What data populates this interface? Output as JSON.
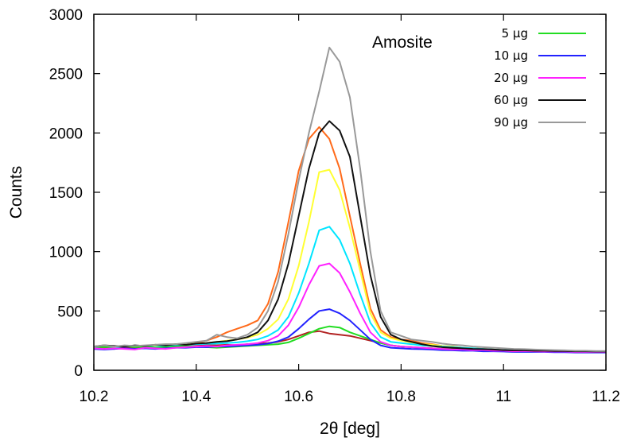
{
  "chart_data": {
    "type": "line",
    "title": "",
    "annotation": "Amosite",
    "xlabel": "2θ [deg]",
    "ylabel": "Counts",
    "xlim": [
      10.2,
      11.2
    ],
    "ylim": [
      0,
      3000
    ],
    "xticks": [
      10.2,
      10.4,
      10.6,
      10.8,
      11,
      11.2
    ],
    "xtick_labels": [
      "10.2",
      "10.4",
      "10.6",
      "10.8",
      "11",
      "11.2"
    ],
    "yticks": [
      0,
      500,
      1000,
      1500,
      2000,
      2500,
      3000
    ],
    "ytick_labels": [
      "0",
      "500",
      "1000",
      "1500",
      "2000",
      "2500",
      "3000"
    ],
    "grid": false,
    "legend_position": "top-right",
    "x": [
      10.2,
      10.22,
      10.24,
      10.26,
      10.28,
      10.3,
      10.32,
      10.34,
      10.36,
      10.38,
      10.4,
      10.42,
      10.44,
      10.46,
      10.48,
      10.5,
      10.52,
      10.54,
      10.56,
      10.58,
      10.6,
      10.62,
      10.64,
      10.66,
      10.68,
      10.7,
      10.72,
      10.74,
      10.76,
      10.78,
      10.8,
      10.82,
      10.84,
      10.86,
      10.88,
      10.9,
      10.92,
      10.94,
      10.96,
      10.98,
      11,
      11.02,
      11.04,
      11.06,
      11.08,
      11.1,
      11.12,
      11.14,
      11.16,
      11.18,
      11.2
    ],
    "series": [
      {
        "name": "",
        "color": "#ff6a1a",
        "values": [
          190,
          190,
          195,
          200,
          185,
          200,
          210,
          205,
          215,
          220,
          230,
          250,
          280,
          320,
          350,
          380,
          420,
          560,
          830,
          1250,
          1680,
          1950,
          2050,
          1950,
          1700,
          1300,
          900,
          520,
          340,
          280,
          260,
          250,
          230,
          220,
          205,
          200,
          190,
          185,
          180,
          175,
          170,
          170,
          175,
          170,
          165,
          160,
          165,
          160,
          160,
          160,
          160
        ]
      },
      {
        "name": "",
        "color": "#ffff33",
        "values": [
          190,
          185,
          190,
          200,
          195,
          205,
          200,
          210,
          215,
          220,
          225,
          230,
          240,
          250,
          260,
          275,
          300,
          350,
          430,
          600,
          880,
          1250,
          1670,
          1690,
          1520,
          1200,
          840,
          480,
          320,
          270,
          250,
          235,
          220,
          215,
          205,
          200,
          190,
          185,
          180,
          175,
          170,
          170,
          168,
          165,
          165,
          160,
          165,
          160,
          160,
          158,
          158
        ]
      },
      {
        "name": "",
        "color": "#00e5ff",
        "values": [
          185,
          190,
          185,
          195,
          190,
          200,
          195,
          205,
          210,
          215,
          220,
          220,
          225,
          230,
          235,
          245,
          260,
          290,
          340,
          450,
          650,
          900,
          1180,
          1210,
          1100,
          900,
          640,
          400,
          280,
          240,
          230,
          220,
          210,
          205,
          200,
          195,
          190,
          185,
          180,
          175,
          170,
          170,
          168,
          165,
          165,
          160,
          162,
          160,
          158,
          158,
          158
        ]
      },
      {
        "name": "",
        "color": "#b22222",
        "values": [
          180,
          185,
          180,
          190,
          185,
          190,
          185,
          195,
          200,
          200,
          205,
          210,
          210,
          215,
          210,
          220,
          225,
          230,
          240,
          260,
          290,
          320,
          330,
          310,
          300,
          290,
          270,
          250,
          230,
          210,
          200,
          195,
          190,
          185,
          180,
          180,
          175,
          175,
          170,
          170,
          165,
          165,
          165,
          160,
          160,
          160,
          160,
          158,
          158,
          155,
          155
        ]
      },
      {
        "name": "5 μg",
        "color": "#22dd22",
        "values": [
          200,
          195,
          200,
          205,
          195,
          200,
          190,
          195,
          200,
          205,
          200,
          195,
          190,
          195,
          200,
          205,
          210,
          215,
          220,
          235,
          270,
          310,
          350,
          370,
          360,
          320,
          290,
          260,
          230,
          210,
          200,
          195,
          190,
          185,
          180,
          175,
          175,
          170,
          170,
          165,
          165,
          160,
          160,
          160,
          160,
          158,
          158,
          155,
          155,
          155,
          155
        ]
      },
      {
        "name": "10 μg",
        "color": "#2222ff",
        "values": [
          180,
          175,
          180,
          185,
          180,
          185,
          180,
          185,
          190,
          190,
          195,
          195,
          200,
          200,
          205,
          210,
          215,
          225,
          245,
          280,
          350,
          430,
          500,
          515,
          480,
          420,
          340,
          260,
          210,
          190,
          185,
          180,
          178,
          175,
          170,
          168,
          165,
          165,
          160,
          160,
          158,
          155,
          155,
          155,
          155,
          152,
          152,
          150,
          150,
          150,
          150
        ]
      },
      {
        "name": "20 μg",
        "color": "#ff22ff",
        "values": [
          185,
          180,
          185,
          180,
          175,
          190,
          185,
          180,
          190,
          195,
          200,
          205,
          200,
          210,
          215,
          220,
          230,
          250,
          290,
          380,
          530,
          720,
          880,
          900,
          820,
          660,
          480,
          320,
          240,
          210,
          200,
          195,
          190,
          185,
          180,
          175,
          175,
          170,
          170,
          165,
          165,
          160,
          162,
          160,
          158,
          158,
          158,
          155,
          155,
          155,
          155
        ]
      },
      {
        "name": "60 μg",
        "color": "#111111",
        "values": [
          200,
          210,
          205,
          200,
          210,
          205,
          215,
          210,
          220,
          215,
          225,
          230,
          240,
          245,
          260,
          280,
          320,
          420,
          600,
          900,
          1300,
          1700,
          2000,
          2100,
          2020,
          1800,
          1300,
          800,
          450,
          300,
          260,
          240,
          220,
          205,
          195,
          190,
          185,
          180,
          178,
          175,
          170,
          168,
          168,
          165,
          165,
          162,
          162,
          160,
          160,
          158,
          158
        ]
      },
      {
        "name": "90 μg",
        "color": "#999999",
        "values": [
          200,
          210,
          200,
          210,
          205,
          210,
          215,
          220,
          220,
          230,
          240,
          250,
          300,
          280,
          270,
          300,
          360,
          500,
          750,
          1150,
          1600,
          2000,
          2350,
          2720,
          2600,
          2300,
          1700,
          1000,
          500,
          320,
          290,
          260,
          250,
          240,
          225,
          215,
          210,
          200,
          195,
          190,
          185,
          180,
          178,
          175,
          172,
          170,
          168,
          165,
          165,
          162,
          162
        ]
      }
    ]
  }
}
